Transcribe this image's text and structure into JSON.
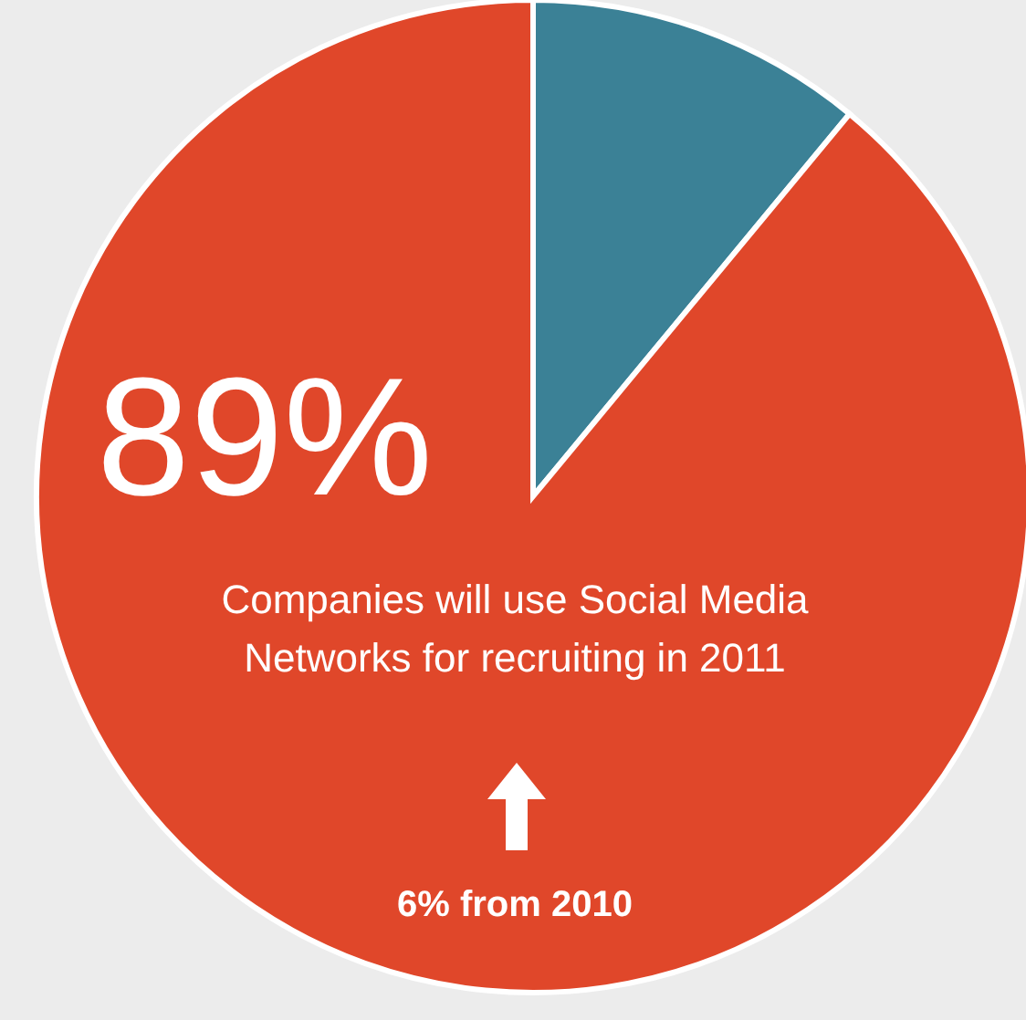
{
  "chart_data": {
    "type": "pie",
    "categories": [
      null,
      null
    ],
    "values": [
      11,
      89
    ],
    "colors": [
      "#3b8196",
      "#e0472a"
    ],
    "value_labels": [
      null,
      "89%"
    ],
    "annotations": [
      "Companies will use Social Media Networks for recruiting in 2011",
      "6% from 2010"
    ]
  }
}
